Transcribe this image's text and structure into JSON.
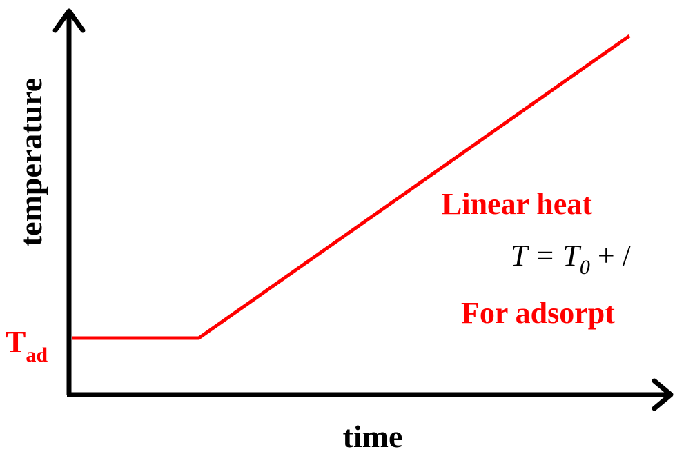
{
  "axes": {
    "y_label": "temperature",
    "x_label": "time"
  },
  "start_label": {
    "main": "T",
    "sub": "ad"
  },
  "annotations": {
    "heading": "Linear heat",
    "equation": {
      "lhs": "T = T",
      "sub": "0",
      "rest": " + /"
    },
    "note": "For adsorpt"
  }
}
